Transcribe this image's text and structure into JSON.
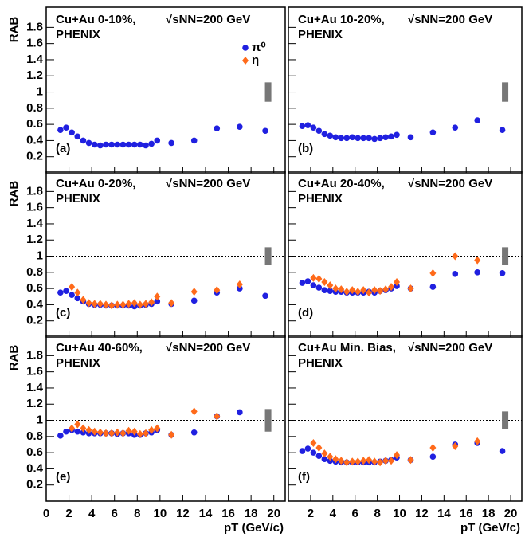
{
  "chart_data": [
    {
      "type": "scatter",
      "title": "Cu+Au 0-10%,",
      "energy": "√sNN=200 GeV",
      "experiment": "PHENIX",
      "label": "(a)",
      "y_label": "RAB",
      "legend": "upper right",
      "xlim": [
        0,
        21
      ],
      "ylim": [
        0,
        2.05
      ],
      "xticks": [
        0,
        2,
        4,
        6,
        8,
        10,
        12,
        14,
        16,
        18,
        20
      ],
      "yticks": [
        0.2,
        0.4,
        0.6,
        0.8,
        1,
        1.2,
        1.4,
        1.6,
        1.8
      ],
      "reference": 1,
      "norm_uncertainty": 0.12,
      "series": [
        {
          "name": "π⁰",
          "color": "#2020e0",
          "x": [
            1.25,
            1.75,
            2.25,
            2.75,
            3.25,
            3.75,
            4.25,
            4.75,
            5.25,
            5.75,
            6.25,
            6.75,
            7.25,
            7.75,
            8.25,
            8.75,
            9.25,
            9.75,
            11,
            13,
            15,
            17,
            19.25
          ],
          "values": [
            0.53,
            0.56,
            0.5,
            0.45,
            0.4,
            0.37,
            0.35,
            0.34,
            0.35,
            0.35,
            0.35,
            0.35,
            0.35,
            0.35,
            0.35,
            0.34,
            0.36,
            0.4,
            0.37,
            0.4,
            0.55,
            0.57,
            0.52
          ]
        },
        {
          "name": "η",
          "color": "#ff6a1a",
          "x": [],
          "values": []
        }
      ]
    },
    {
      "type": "scatter",
      "title": "Cu+Au 10-20%,",
      "energy": "√sNN=200 GeV",
      "experiment": "PHENIX",
      "label": "(b)",
      "xlim": [
        0,
        21
      ],
      "ylim": [
        0,
        2.05
      ],
      "xticks": [
        0,
        2,
        4,
        6,
        8,
        10,
        12,
        14,
        16,
        18,
        20
      ],
      "yticks": [
        0.2,
        0.4,
        0.6,
        0.8,
        1,
        1.2,
        1.4,
        1.6,
        1.8
      ],
      "reference": 1,
      "norm_uncertainty": 0.12,
      "series": [
        {
          "color": "#2020e0",
          "x": [
            1.25,
            1.75,
            2.25,
            2.75,
            3.25,
            3.75,
            4.25,
            4.75,
            5.25,
            5.75,
            6.25,
            6.75,
            7.25,
            7.75,
            8.25,
            8.75,
            9.25,
            9.75,
            11,
            13,
            15,
            17,
            19.25
          ],
          "values": [
            0.58,
            0.59,
            0.56,
            0.52,
            0.48,
            0.46,
            0.44,
            0.43,
            0.43,
            0.44,
            0.43,
            0.43,
            0.43,
            0.42,
            0.43,
            0.44,
            0.45,
            0.47,
            0.44,
            0.5,
            0.56,
            0.65,
            0.53
          ]
        }
      ]
    },
    {
      "type": "scatter",
      "title": "Cu+Au 0-20%,",
      "energy": "√sNN=200 GeV",
      "experiment": "PHENIX",
      "label": "(c)",
      "y_label": "RAB",
      "xlim": [
        0,
        21
      ],
      "ylim": [
        0,
        2.05
      ],
      "xticks": [
        0,
        2,
        4,
        6,
        8,
        10,
        12,
        14,
        16,
        18,
        20
      ],
      "yticks": [
        0.2,
        0.4,
        0.6,
        0.8,
        1,
        1.2,
        1.4,
        1.6,
        1.8
      ],
      "reference": 1,
      "norm_uncertainty": 0.11,
      "series": [
        {
          "color": "#2020e0",
          "x": [
            1.25,
            1.75,
            2.25,
            2.75,
            3.25,
            3.75,
            4.25,
            4.75,
            5.25,
            5.75,
            6.25,
            6.75,
            7.25,
            7.75,
            8.25,
            8.75,
            9.25,
            9.75,
            11,
            13,
            15,
            17,
            19.25
          ],
          "values": [
            0.55,
            0.57,
            0.52,
            0.48,
            0.44,
            0.41,
            0.4,
            0.4,
            0.39,
            0.39,
            0.39,
            0.39,
            0.39,
            0.38,
            0.39,
            0.4,
            0.41,
            0.44,
            0.41,
            0.45,
            0.55,
            0.6,
            0.51
          ]
        },
        {
          "color": "#ff6a1a",
          "x": [
            2.25,
            2.75,
            3.25,
            3.75,
            4.25,
            4.75,
            5.25,
            5.75,
            6.25,
            6.75,
            7.25,
            7.75,
            8.25,
            8.75,
            9.25,
            9.75,
            11,
            13,
            15,
            17
          ],
          "values": [
            0.62,
            0.55,
            0.46,
            0.42,
            0.41,
            0.41,
            0.4,
            0.39,
            0.4,
            0.4,
            0.41,
            0.42,
            0.4,
            0.41,
            0.43,
            0.5,
            0.42,
            0.56,
            0.58,
            0.65
          ]
        }
      ]
    },
    {
      "type": "scatter",
      "title": "Cu+Au 20-40%,",
      "energy": "√sNN=200 GeV",
      "experiment": "PHENIX",
      "label": "(d)",
      "xlim": [
        0,
        21
      ],
      "ylim": [
        0,
        2.05
      ],
      "xticks": [
        0,
        2,
        4,
        6,
        8,
        10,
        12,
        14,
        16,
        18,
        20
      ],
      "yticks": [
        0.2,
        0.4,
        0.6,
        0.8,
        1,
        1.2,
        1.4,
        1.6,
        1.8
      ],
      "reference": 1,
      "norm_uncertainty": 0.11,
      "series": [
        {
          "color": "#2020e0",
          "x": [
            1.25,
            1.75,
            2.25,
            2.75,
            3.25,
            3.75,
            4.25,
            4.75,
            5.25,
            5.75,
            6.25,
            6.75,
            7.25,
            7.75,
            8.25,
            8.75,
            9.25,
            9.75,
            11,
            13,
            15,
            17,
            19.25
          ],
          "values": [
            0.67,
            0.69,
            0.64,
            0.61,
            0.58,
            0.57,
            0.56,
            0.56,
            0.55,
            0.55,
            0.55,
            0.55,
            0.56,
            0.55,
            0.57,
            0.58,
            0.6,
            0.63,
            0.6,
            0.62,
            0.78,
            0.8,
            0.79
          ]
        },
        {
          "color": "#ff6a1a",
          "x": [
            2.25,
            2.75,
            3.25,
            3.75,
            4.25,
            4.75,
            5.25,
            5.75,
            6.25,
            6.75,
            7.25,
            7.75,
            8.25,
            8.75,
            9.25,
            9.75,
            11,
            13,
            15,
            17
          ],
          "values": [
            0.73,
            0.72,
            0.68,
            0.64,
            0.6,
            0.59,
            0.56,
            0.58,
            0.56,
            0.58,
            0.55,
            0.58,
            0.57,
            0.59,
            0.62,
            0.68,
            0.6,
            0.79,
            1.0,
            0.95
          ]
        }
      ]
    },
    {
      "type": "scatter",
      "title": "Cu+Au 40-60%,",
      "energy": "√sNN=200 GeV",
      "experiment": "PHENIX",
      "label": "(e)",
      "y_label": "RAB",
      "x_label": "pT (GeV/c)",
      "xlim": [
        0,
        21
      ],
      "ylim": [
        0,
        2.05
      ],
      "xticks": [
        0,
        2,
        4,
        6,
        8,
        10,
        12,
        14,
        16,
        18,
        20
      ],
      "yticks": [
        0.2,
        0.4,
        0.6,
        0.8,
        1,
        1.2,
        1.4,
        1.6,
        1.8
      ],
      "reference": 1,
      "norm_uncertainty": 0.14,
      "series": [
        {
          "color": "#2020e0",
          "x": [
            1.25,
            1.75,
            2.25,
            2.75,
            3.25,
            3.75,
            4.25,
            4.75,
            5.25,
            5.75,
            6.25,
            6.75,
            7.25,
            7.75,
            8.25,
            8.75,
            9.25,
            9.75,
            11,
            13,
            15,
            17
          ],
          "values": [
            0.81,
            0.86,
            0.88,
            0.86,
            0.85,
            0.84,
            0.84,
            0.84,
            0.84,
            0.84,
            0.83,
            0.84,
            0.84,
            0.82,
            0.82,
            0.84,
            0.85,
            0.88,
            0.82,
            0.85,
            1.05,
            1.1
          ]
        },
        {
          "color": "#ff6a1a",
          "x": [
            2.25,
            2.75,
            3.25,
            3.75,
            4.25,
            4.75,
            5.25,
            5.75,
            6.25,
            6.75,
            7.25,
            7.75,
            8.25,
            8.75,
            9.25,
            9.75,
            11,
            13,
            15
          ],
          "values": [
            0.9,
            0.95,
            0.9,
            0.88,
            0.86,
            0.85,
            0.84,
            0.84,
            0.85,
            0.84,
            0.87,
            0.86,
            0.83,
            0.84,
            0.88,
            0.9,
            0.82,
            1.11,
            1.05
          ]
        }
      ]
    },
    {
      "type": "scatter",
      "title": "Cu+Au Min. Bias,",
      "energy": "√sNN=200 GeV",
      "experiment": "PHENIX",
      "label": "(f)",
      "x_label": "pT (GeV/c)",
      "xlim": [
        0,
        21
      ],
      "ylim": [
        0,
        2.05
      ],
      "xticks": [
        2,
        4,
        6,
        8,
        10,
        12,
        14,
        16,
        18,
        20
      ],
      "yticks": [
        0.2,
        0.4,
        0.6,
        0.8,
        1,
        1.2,
        1.4,
        1.6,
        1.8
      ],
      "reference": 1,
      "norm_uncertainty": 0.11,
      "series": [
        {
          "color": "#2020e0",
          "x": [
            1.25,
            1.75,
            2.25,
            2.75,
            3.25,
            3.75,
            4.25,
            4.75,
            5.25,
            5.75,
            6.25,
            6.75,
            7.25,
            7.75,
            8.25,
            8.75,
            9.25,
            9.75,
            11,
            13,
            15,
            17,
            19.25
          ],
          "values": [
            0.62,
            0.65,
            0.6,
            0.56,
            0.52,
            0.5,
            0.49,
            0.48,
            0.48,
            0.48,
            0.48,
            0.48,
            0.48,
            0.48,
            0.49,
            0.5,
            0.51,
            0.54,
            0.51,
            0.55,
            0.7,
            0.72,
            0.62
          ]
        },
        {
          "color": "#ff6a1a",
          "x": [
            2.25,
            2.75,
            3.25,
            3.75,
            4.25,
            4.75,
            5.25,
            5.75,
            6.25,
            6.75,
            7.25,
            7.75,
            8.25,
            8.75,
            9.25,
            9.75,
            11,
            13,
            15,
            17
          ],
          "values": [
            0.72,
            0.66,
            0.59,
            0.55,
            0.52,
            0.5,
            0.48,
            0.49,
            0.49,
            0.5,
            0.51,
            0.49,
            0.48,
            0.5,
            0.5,
            0.57,
            0.51,
            0.66,
            0.68,
            0.74
          ]
        }
      ]
    }
  ]
}
